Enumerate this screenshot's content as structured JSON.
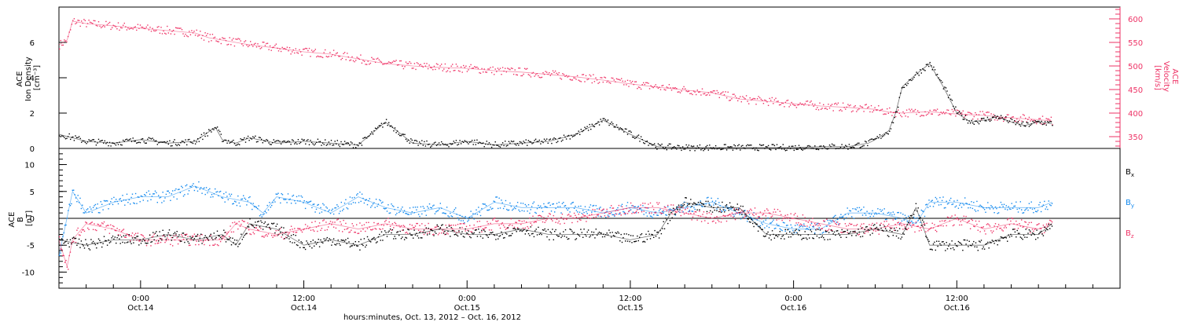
{
  "chart_data": [
    {
      "type": "scatter",
      "panel": "plasma",
      "ylabel": [
        "ACE",
        "Ion Density",
        "[cm⁻³]"
      ],
      "ylabel_right": [
        "ACE",
        "Velocity",
        "[km/s]"
      ],
      "ylim": [
        0,
        8
      ],
      "ylim_right": [
        325,
        625
      ],
      "yticks": [
        0,
        2,
        4,
        6
      ],
      "yticks_right": [
        350,
        400,
        450,
        500,
        550,
        600
      ],
      "colors": {
        "density": "#000000",
        "velocity": "#ee3366"
      },
      "series": [
        {
          "name": "Ion Density",
          "color": "#000000",
          "axis": "left",
          "x_hours": [
            0,
            2,
            4,
            6,
            8,
            10,
            11.5,
            12,
            13,
            14,
            16,
            18,
            20,
            22,
            24,
            26,
            28,
            30,
            32,
            34,
            36,
            38,
            40,
            42,
            44,
            46,
            48,
            50,
            52,
            54,
            56,
            58,
            59.5,
            60,
            61,
            61.5,
            62,
            63,
            64,
            65,
            66,
            67,
            68,
            69,
            70,
            71,
            72,
            73
          ],
          "y": [
            0.8,
            0.4,
            0.3,
            0.5,
            0.3,
            0.4,
            1.2,
            0.5,
            0.3,
            0.6,
            0.3,
            0.4,
            0.3,
            0.2,
            1.5,
            0.3,
            0.2,
            0.4,
            0.2,
            0.3,
            0.4,
            0.8,
            1.6,
            0.8,
            0.1,
            0.05,
            0.05,
            0.05,
            0.05,
            0.05,
            0.1,
            0.1,
            0.3,
            0.5,
            1.0,
            2.0,
            3.5,
            4.2,
            4.8,
            3.5,
            2.0,
            1.5,
            1.6,
            1.8,
            1.5,
            1.3,
            1.5,
            1.4
          ]
        },
        {
          "name": "Velocity",
          "color": "#ee3366",
          "axis": "right",
          "x_hours": [
            0,
            0.6,
            1,
            2,
            4,
            6,
            8,
            10,
            11,
            12,
            14,
            16,
            18,
            20,
            22,
            24,
            26,
            28,
            30,
            32,
            34,
            36,
            38,
            40,
            42,
            44,
            46,
            48,
            50,
            52,
            54,
            56,
            58,
            60,
            61,
            62,
            64,
            66,
            68,
            70,
            72,
            73
          ],
          "y": [
            545,
            555,
            595,
            590,
            585,
            580,
            575,
            570,
            560,
            555,
            545,
            538,
            530,
            525,
            515,
            505,
            500,
            497,
            495,
            490,
            487,
            482,
            477,
            470,
            462,
            455,
            449,
            443,
            430,
            425,
            420,
            415,
            412,
            408,
            402,
            400,
            403,
            398,
            395,
            390,
            386,
            383
          ]
        }
      ]
    },
    {
      "type": "scatter",
      "panel": "magnetic field",
      "ylabel": [
        "ACE",
        "B",
        "[nT]"
      ],
      "ylim": [
        -13,
        13
      ],
      "yticks": [
        -10,
        -5,
        0,
        5,
        10
      ],
      "zero_line": true,
      "series": [
        {
          "name": "B",
          "subscript": "x",
          "color": "#000000",
          "x_hours": [
            0,
            2,
            4,
            6,
            8,
            10,
            12,
            13,
            14,
            16,
            18,
            20,
            22,
            24,
            26,
            28,
            30,
            32,
            34,
            36,
            38,
            40,
            42,
            44,
            45,
            46,
            48,
            50,
            52,
            54,
            56,
            58,
            60,
            62,
            63,
            64,
            66,
            68,
            70,
            72,
            73
          ],
          "y": [
            -4,
            -5,
            -4,
            -4,
            -3,
            -4,
            -3,
            -5,
            -1,
            -2,
            -5,
            -4,
            -5,
            -3,
            -3,
            -2,
            -3,
            -3,
            -2,
            -3,
            -3,
            -3,
            -4,
            -3,
            1,
            3,
            2,
            2,
            -3,
            -3,
            -3,
            -3,
            -2,
            -3,
            2,
            -5,
            -5,
            -5,
            -3,
            -3,
            -1
          ]
        },
        {
          "name": "B",
          "subscript": "y",
          "color": "#1188ee",
          "x_hours": [
            0,
            1,
            2,
            4,
            6,
            8,
            9,
            10,
            12,
            14,
            15,
            16,
            18,
            20,
            22,
            24,
            26,
            28,
            30,
            32,
            34,
            36,
            38,
            40,
            42,
            44,
            46,
            48,
            50,
            52,
            54,
            56,
            58,
            60,
            62,
            63,
            64,
            66,
            68,
            70,
            72,
            73
          ],
          "y": [
            -7,
            5,
            1,
            3,
            4,
            4,
            5,
            6,
            4,
            3,
            1,
            4,
            3,
            1,
            4,
            2,
            1,
            2,
            0,
            3,
            2,
            2,
            2,
            1,
            2,
            1,
            2,
            3,
            1,
            -1,
            -2,
            -2,
            1,
            1,
            0,
            -1,
            3,
            3,
            2,
            2,
            2,
            3
          ]
        },
        {
          "name": "B",
          "subscript": "z",
          "color": "#ee3366",
          "x_hours": [
            0,
            0.6,
            1,
            2,
            4,
            6,
            8,
            10,
            12,
            13,
            14,
            16,
            18,
            20,
            22,
            24,
            26,
            28,
            30,
            32,
            34,
            36,
            38,
            40,
            42,
            44,
            46,
            48,
            50,
            52,
            54,
            56,
            58,
            60,
            62,
            64,
            66,
            68,
            70,
            72,
            73
          ],
          "y": [
            -4,
            -9,
            -4,
            -1,
            -2,
            -4,
            -4,
            -4,
            -4,
            -1,
            -2,
            -3,
            -2,
            -1,
            -2,
            -1,
            -2,
            -2,
            -2,
            -1,
            -1,
            0,
            0,
            1,
            2,
            2,
            1,
            0,
            1,
            1,
            0,
            -1,
            -2,
            -2,
            -1,
            -2,
            0,
            -2,
            -1,
            -2,
            -1
          ]
        }
      ]
    }
  ],
  "x_axis": {
    "title": "hours:minutes, Oct. 13, 2012 – Oct. 16, 2012",
    "range_hours": [
      0,
      78
    ],
    "major_ticks": [
      {
        "hour": 6,
        "time": "0:00",
        "date": "Oct.14"
      },
      {
        "hour": 18,
        "time": "12:00",
        "date": "Oct.14"
      },
      {
        "hour": 30,
        "time": "0:00",
        "date": "Oct.15"
      },
      {
        "hour": 42,
        "time": "12:00",
        "date": "Oct.15"
      },
      {
        "hour": 54,
        "time": "0:00",
        "date": "Oct.16"
      },
      {
        "hour": 66,
        "time": "12:00",
        "date": "Oct.16"
      }
    ]
  }
}
